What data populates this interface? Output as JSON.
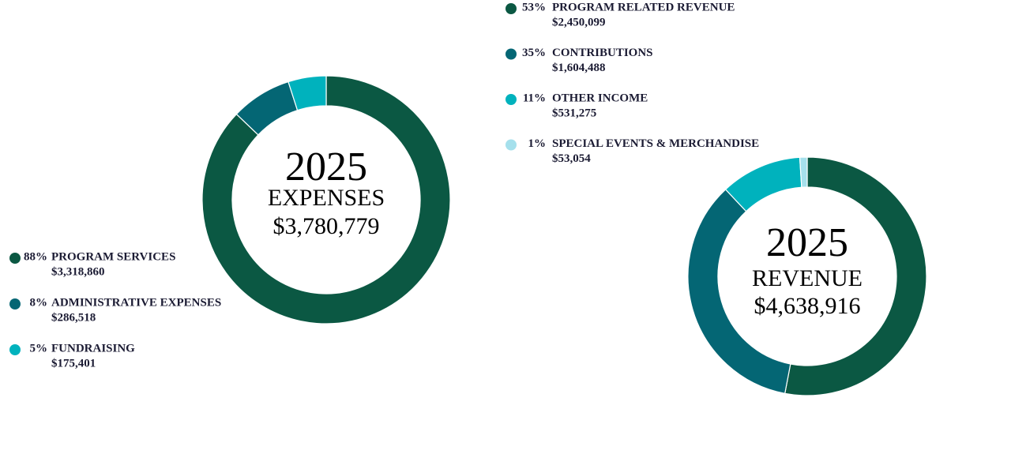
{
  "chart_data": [
    {
      "type": "pie",
      "center_title": "2025",
      "center_label": "EXPENSES",
      "center_value": "$3,780,779",
      "categories": [
        "PROGRAM SERVICES",
        "ADMINISTRATIVE EXPENSES",
        "FUNDRAISING"
      ],
      "values": [
        88,
        8,
        5
      ],
      "value_labels": [
        "88%",
        "8%",
        "5%"
      ],
      "amounts": [
        3318860,
        286518,
        175401
      ],
      "amount_labels": [
        "$3,318,860",
        "$286,518",
        "$175,401"
      ],
      "colors": [
        "#0b5843",
        "#046674",
        "#00b2bd"
      ]
    },
    {
      "type": "pie",
      "center_title": "2025",
      "center_label": "REVENUE",
      "center_value": "$4,638,916",
      "categories": [
        "PROGRAM RELATED REVENUE",
        "CONTRIBUTIONS",
        "OTHER INCOME",
        "SPECIAL EVENTS & MERCHANDISE"
      ],
      "values": [
        53,
        35,
        11,
        1
      ],
      "value_labels": [
        "53%",
        "35%",
        "11%",
        "1%"
      ],
      "amounts": [
        2450099,
        1604488,
        531275,
        53054
      ],
      "amount_labels": [
        "$2,450,099",
        "$1,604,488",
        "$531,275",
        "$53,054"
      ],
      "colors": [
        "#0b5843",
        "#046674",
        "#00b2bd",
        "#a5e0ec"
      ]
    }
  ]
}
